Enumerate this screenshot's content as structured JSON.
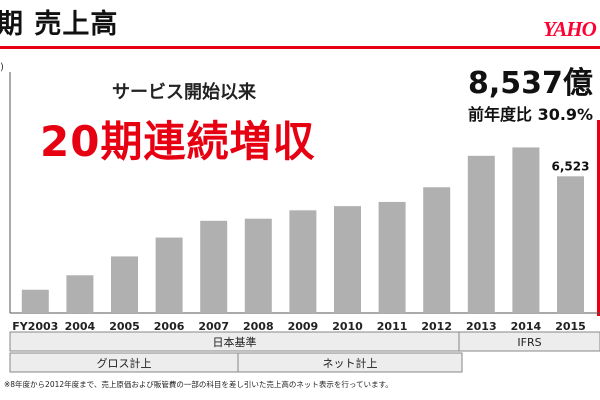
{
  "header": {
    "title": "期 売上高",
    "logo_text": "YAHO"
  },
  "overlay": {
    "service_text": "サービス開始以来",
    "growth_text": "20期連続増収",
    "total_value": "8,537億",
    "yoy_text": "前年度比 30.9%"
  },
  "axis_hint": ")",
  "footnote": "※8年度から2012年度まで、売上原価および販管費の一部の科目を差し引いた売上高のネット表示を行っています。",
  "colors": {
    "bar": "#b0b0b0",
    "accent": "#e60012",
    "band": "#ededed"
  },
  "chart_data": {
    "type": "bar",
    "categories": [
      "FY2003",
      "2004",
      "2005",
      "2006",
      "2007",
      "2008",
      "2009",
      "2010",
      "2011",
      "2012",
      "2013",
      "2014",
      "2015"
    ],
    "values": [
      1110,
      1800,
      2700,
      3600,
      4400,
      4500,
      4900,
      5100,
      5300,
      6000,
      7500,
      7900,
      6523
    ],
    "data_labels": [
      null,
      null,
      null,
      null,
      null,
      null,
      null,
      null,
      null,
      null,
      null,
      null,
      "6,523"
    ],
    "ylim": [
      0,
      11500
    ],
    "group_rows": [
      {
        "labels": [
          "日本基準",
          "IFRS"
        ]
      },
      {
        "labels": [
          "グロス計上",
          "ネット計上"
        ]
      }
    ]
  }
}
